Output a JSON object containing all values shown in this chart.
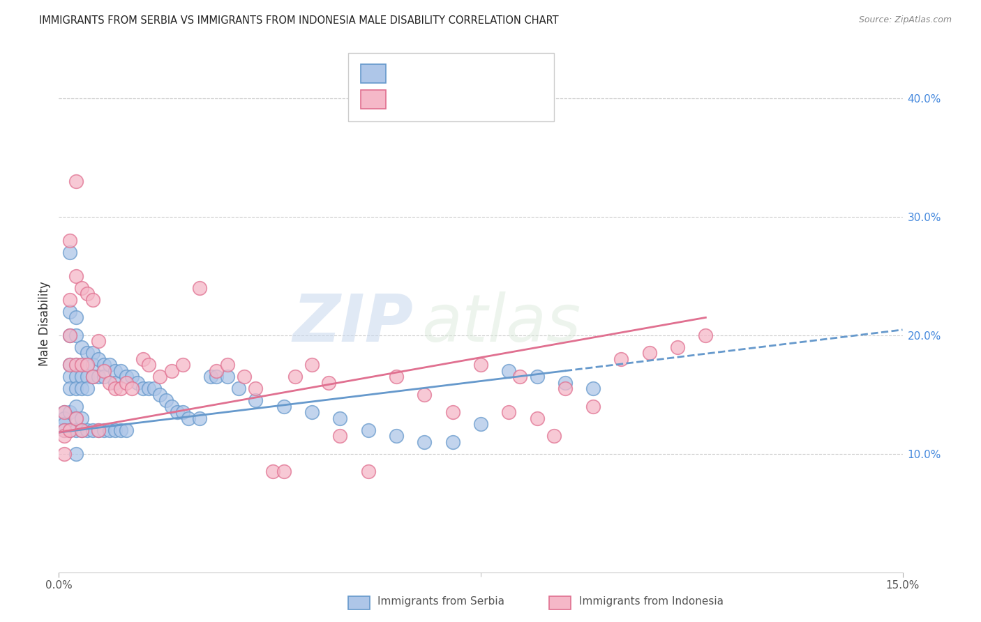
{
  "title": "IMMIGRANTS FROM SERBIA VS IMMIGRANTS FROM INDONESIA MALE DISABILITY CORRELATION CHART",
  "source": "Source: ZipAtlas.com",
  "ylabel": "Male Disability",
  "xlim": [
    0.0,
    0.15
  ],
  "ylim": [
    0.0,
    0.42
  ],
  "right_yticks": [
    0.1,
    0.2,
    0.3,
    0.4
  ],
  "right_yticklabels": [
    "10.0%",
    "20.0%",
    "30.0%",
    "40.0%"
  ],
  "serbia_color": "#aec6e8",
  "serbia_edge": "#6699cc",
  "indonesia_color": "#f5b8c8",
  "indonesia_edge": "#e07090",
  "legend_R_color": "#4488dd",
  "legend_N_color": "#dd2244",
  "watermark_zip": "ZIP",
  "watermark_atlas": "atlas",
  "serbia_x": [
    0.001,
    0.001,
    0.001,
    0.001,
    0.002,
    0.002,
    0.002,
    0.002,
    0.002,
    0.002,
    0.002,
    0.002,
    0.003,
    0.003,
    0.003,
    0.003,
    0.003,
    0.003,
    0.003,
    0.003,
    0.003,
    0.004,
    0.004,
    0.004,
    0.004,
    0.004,
    0.004,
    0.005,
    0.005,
    0.005,
    0.005,
    0.005,
    0.006,
    0.006,
    0.006,
    0.006,
    0.007,
    0.007,
    0.007,
    0.008,
    0.008,
    0.008,
    0.009,
    0.009,
    0.01,
    0.01,
    0.01,
    0.011,
    0.011,
    0.012,
    0.012,
    0.013,
    0.014,
    0.015,
    0.016,
    0.017,
    0.018,
    0.019,
    0.02,
    0.021,
    0.022,
    0.023,
    0.025,
    0.027,
    0.028,
    0.03,
    0.032,
    0.035,
    0.04,
    0.045,
    0.05,
    0.055,
    0.06,
    0.065,
    0.07,
    0.075,
    0.08,
    0.085,
    0.09,
    0.095
  ],
  "serbia_y": [
    0.135,
    0.13,
    0.125,
    0.12,
    0.27,
    0.22,
    0.2,
    0.175,
    0.165,
    0.155,
    0.135,
    0.12,
    0.215,
    0.2,
    0.175,
    0.165,
    0.155,
    0.14,
    0.13,
    0.12,
    0.1,
    0.19,
    0.175,
    0.165,
    0.155,
    0.13,
    0.12,
    0.185,
    0.175,
    0.165,
    0.155,
    0.12,
    0.185,
    0.175,
    0.165,
    0.12,
    0.18,
    0.165,
    0.12,
    0.175,
    0.165,
    0.12,
    0.175,
    0.12,
    0.17,
    0.16,
    0.12,
    0.17,
    0.12,
    0.165,
    0.12,
    0.165,
    0.16,
    0.155,
    0.155,
    0.155,
    0.15,
    0.145,
    0.14,
    0.135,
    0.135,
    0.13,
    0.13,
    0.165,
    0.165,
    0.165,
    0.155,
    0.145,
    0.14,
    0.135,
    0.13,
    0.12,
    0.115,
    0.11,
    0.11,
    0.125,
    0.17,
    0.165,
    0.16,
    0.155
  ],
  "indonesia_x": [
    0.001,
    0.001,
    0.001,
    0.001,
    0.002,
    0.002,
    0.002,
    0.002,
    0.002,
    0.003,
    0.003,
    0.003,
    0.003,
    0.004,
    0.004,
    0.004,
    0.005,
    0.005,
    0.006,
    0.006,
    0.007,
    0.007,
    0.008,
    0.009,
    0.01,
    0.011,
    0.012,
    0.013,
    0.015,
    0.016,
    0.018,
    0.02,
    0.022,
    0.025,
    0.028,
    0.03,
    0.033,
    0.035,
    0.038,
    0.04,
    0.042,
    0.045,
    0.048,
    0.05,
    0.055,
    0.06,
    0.065,
    0.07,
    0.075,
    0.08,
    0.082,
    0.085,
    0.088,
    0.09,
    0.095,
    0.1,
    0.105,
    0.11,
    0.115
  ],
  "indonesia_y": [
    0.135,
    0.12,
    0.115,
    0.1,
    0.28,
    0.23,
    0.2,
    0.175,
    0.12,
    0.33,
    0.25,
    0.175,
    0.13,
    0.24,
    0.175,
    0.12,
    0.235,
    0.175,
    0.23,
    0.165,
    0.195,
    0.12,
    0.17,
    0.16,
    0.155,
    0.155,
    0.16,
    0.155,
    0.18,
    0.175,
    0.165,
    0.17,
    0.175,
    0.24,
    0.17,
    0.175,
    0.165,
    0.155,
    0.085,
    0.085,
    0.165,
    0.175,
    0.16,
    0.115,
    0.085,
    0.165,
    0.15,
    0.135,
    0.175,
    0.135,
    0.165,
    0.13,
    0.115,
    0.155,
    0.14,
    0.18,
    0.185,
    0.19,
    0.2
  ],
  "serbia_line_x": [
    0.0,
    0.09
  ],
  "serbia_line_y": [
    0.118,
    0.17
  ],
  "indonesia_line_x": [
    0.0,
    0.115
  ],
  "indonesia_line_y": [
    0.118,
    0.215
  ]
}
